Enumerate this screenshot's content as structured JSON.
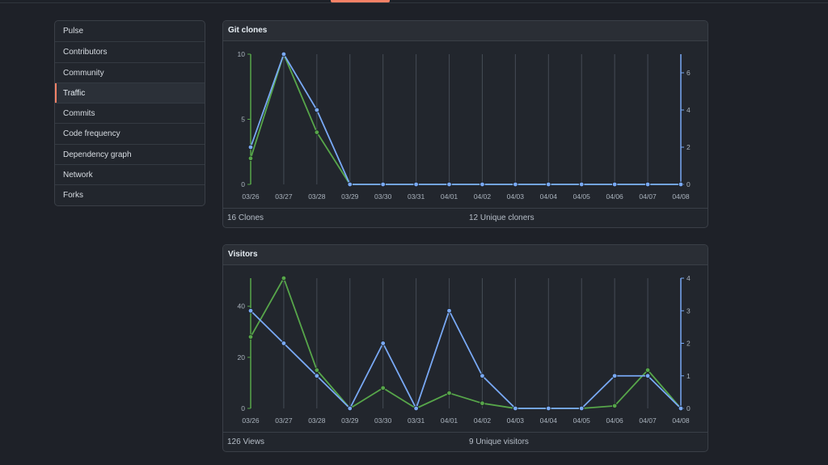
{
  "sidebar": {
    "items": [
      {
        "label": "Pulse",
        "name": "sidebar-item-pulse",
        "active": false
      },
      {
        "label": "Contributors",
        "name": "sidebar-item-contributors",
        "active": false
      },
      {
        "label": "Community",
        "name": "sidebar-item-community",
        "active": false
      },
      {
        "label": "Traffic",
        "name": "sidebar-item-traffic",
        "active": true
      },
      {
        "label": "Commits",
        "name": "sidebar-item-commits",
        "active": false
      },
      {
        "label": "Code frequency",
        "name": "sidebar-item-code-frequency",
        "active": false
      },
      {
        "label": "Dependency graph",
        "name": "sidebar-item-dependency-graph",
        "active": false
      },
      {
        "label": "Network",
        "name": "sidebar-item-network",
        "active": false
      },
      {
        "label": "Forks",
        "name": "sidebar-item-forks",
        "active": false
      }
    ]
  },
  "clones": {
    "title": "Git clones",
    "total_label": "16 Clones",
    "unique_label": "12 Unique cloners"
  },
  "visitors": {
    "title": "Visitors",
    "total_label": "126 Views",
    "unique_label": "9 Unique visitors"
  },
  "colors": {
    "accent": "#f78166",
    "green": "#57a64a",
    "blue": "#79a9f5"
  },
  "chart_data": [
    {
      "type": "line",
      "categories": [
        "03/26",
        "03/27",
        "03/28",
        "03/29",
        "03/30",
        "03/31",
        "04/01",
        "04/02",
        "04/03",
        "04/04",
        "04/05",
        "04/06",
        "04/07",
        "04/08"
      ],
      "series": [
        {
          "color": "green",
          "axis": "left",
          "values": [
            2,
            10,
            4,
            0,
            0,
            0,
            0,
            0,
            0,
            0,
            0,
            0,
            0,
            0
          ]
        },
        {
          "color": "blue",
          "axis": "right",
          "values": [
            2,
            7,
            4,
            0,
            0,
            0,
            0,
            0,
            0,
            0,
            0,
            0,
            0,
            0
          ]
        }
      ],
      "left_ylim": [
        0,
        10
      ],
      "left_ticks": [
        0,
        5,
        10
      ],
      "right_ylim": [
        0,
        7
      ],
      "right_ticks": [
        0,
        2,
        4,
        6
      ]
    },
    {
      "type": "line",
      "categories": [
        "03/26",
        "03/27",
        "03/28",
        "03/29",
        "03/30",
        "03/31",
        "04/01",
        "04/02",
        "04/03",
        "04/04",
        "04/05",
        "04/06",
        "04/07",
        "04/08"
      ],
      "series": [
        {
          "color": "green",
          "axis": "left",
          "values": [
            28,
            51,
            15,
            0,
            8,
            0,
            6,
            2,
            0,
            0,
            0,
            1,
            15,
            0
          ]
        },
        {
          "color": "blue",
          "axis": "right",
          "values": [
            3,
            2,
            1,
            0,
            2,
            0,
            3,
            1,
            0,
            0,
            0,
            1,
            1,
            0
          ]
        }
      ],
      "left_ylim": [
        0,
        51
      ],
      "left_ticks": [
        0,
        20,
        40
      ],
      "right_ylim": [
        0,
        4
      ],
      "right_ticks": [
        0,
        1,
        2,
        3,
        4
      ]
    }
  ]
}
